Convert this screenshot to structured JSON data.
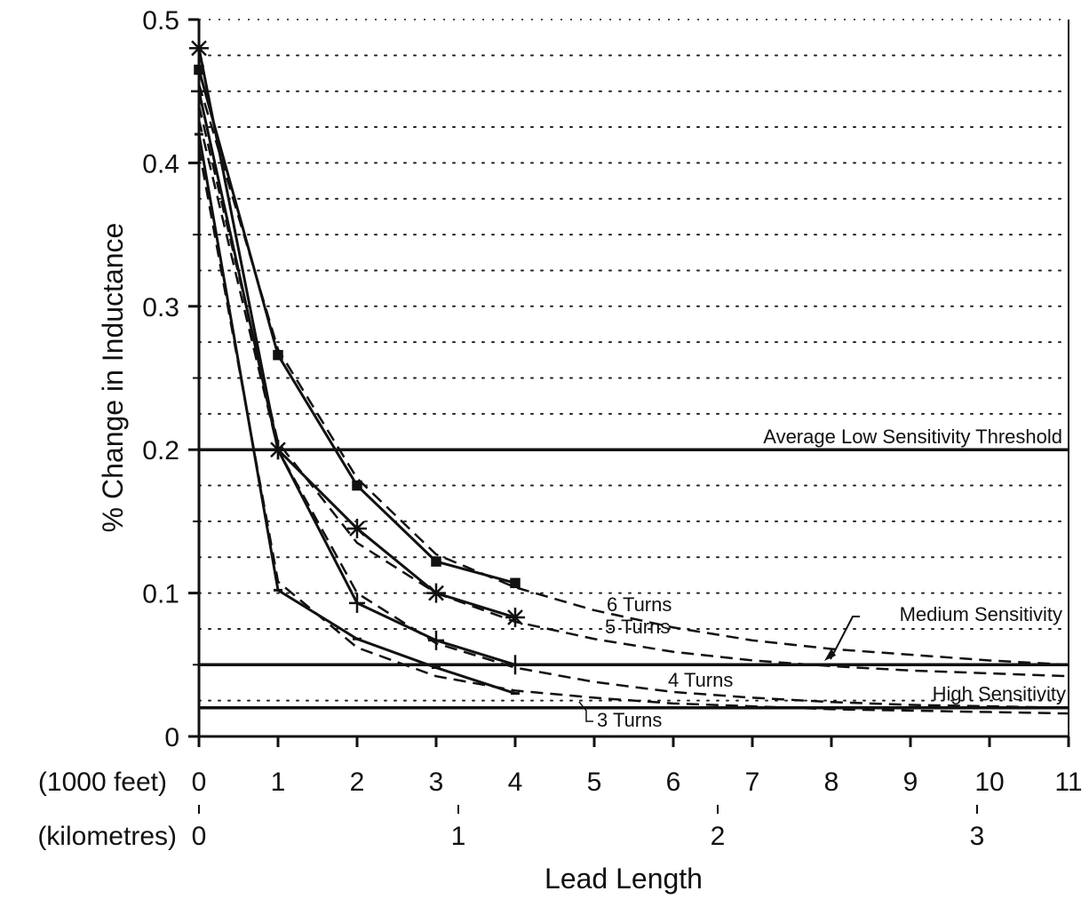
{
  "chart_data": {
    "type": "line",
    "title": "",
    "ylabel": "% Change in Inductance",
    "xlabel": "Lead Length",
    "x_unit_primary": "(1000 feet)",
    "x_unit_secondary": "(kilometres)",
    "xlim": [
      0,
      11
    ],
    "ylim": [
      0,
      0.5
    ],
    "x_ticks": [
      "0",
      "1",
      "2",
      "3",
      "4",
      "5",
      "6",
      "7",
      "8",
      "9",
      "10",
      "11"
    ],
    "y_ticks": [
      "0",
      "0.1",
      "0.2",
      "0.3",
      "0.4",
      "0.5"
    ],
    "km_ticks": [
      "0",
      "1",
      "2",
      "3"
    ],
    "grid": "dotted horizontal lines every 0.025",
    "thresholds": [
      {
        "label": "Average Low Sensitivity Threshold",
        "value": 0.2
      },
      {
        "label": "Medium Sensitivity",
        "value": 0.05
      },
      {
        "label": "High Sensitivity",
        "value": 0.02
      }
    ],
    "series": [
      {
        "name": "6 Turns",
        "marker": "square",
        "x": [
          0,
          1,
          2,
          3,
          4
        ],
        "values": [
          0.465,
          0.266,
          0.175,
          0.122,
          0.107
        ],
        "fit_x": [
          0,
          1,
          2,
          3,
          4,
          5,
          6,
          7,
          8,
          9,
          10,
          11
        ],
        "fit_values": [
          0.455,
          0.27,
          0.18,
          0.127,
          0.104,
          0.088,
          0.076,
          0.067,
          0.061,
          0.057,
          0.053,
          0.05
        ]
      },
      {
        "name": "5 Turns",
        "marker": "asterisk",
        "x": [
          0,
          1,
          2,
          3,
          4
        ],
        "values": [
          0.48,
          0.2,
          0.145,
          0.1,
          0.083
        ],
        "fit_x": [
          0,
          1,
          2,
          3,
          4,
          5,
          6,
          7,
          8,
          9,
          10,
          11
        ],
        "fit_values": [
          0.44,
          0.205,
          0.135,
          0.1,
          0.08,
          0.068,
          0.059,
          0.053,
          0.049,
          0.046,
          0.044,
          0.042
        ]
      },
      {
        "name": "4 Turns",
        "marker": "plus",
        "x": [
          0,
          1,
          2,
          3,
          4
        ],
        "values": [
          0.45,
          0.2,
          0.093,
          0.067,
          0.05
        ],
        "fit_x": [
          0,
          1,
          2,
          3,
          4,
          5,
          6,
          7,
          8,
          9,
          10,
          11
        ],
        "fit_values": [
          0.43,
          0.2,
          0.1,
          0.065,
          0.048,
          0.038,
          0.031,
          0.027,
          0.024,
          0.022,
          0.021,
          0.02
        ]
      },
      {
        "name": "3 Turns",
        "marker": "dash",
        "x": [
          0,
          1,
          2,
          3,
          4
        ],
        "values": [
          0.42,
          0.102,
          0.068,
          0.048,
          0.03
        ],
        "fit_x": [
          0,
          1,
          2,
          3,
          4,
          5,
          6,
          7,
          8,
          9,
          10,
          11
        ],
        "fit_values": [
          0.41,
          0.108,
          0.062,
          0.042,
          0.032,
          0.027,
          0.023,
          0.021,
          0.019,
          0.018,
          0.017,
          0.016
        ]
      }
    ]
  }
}
